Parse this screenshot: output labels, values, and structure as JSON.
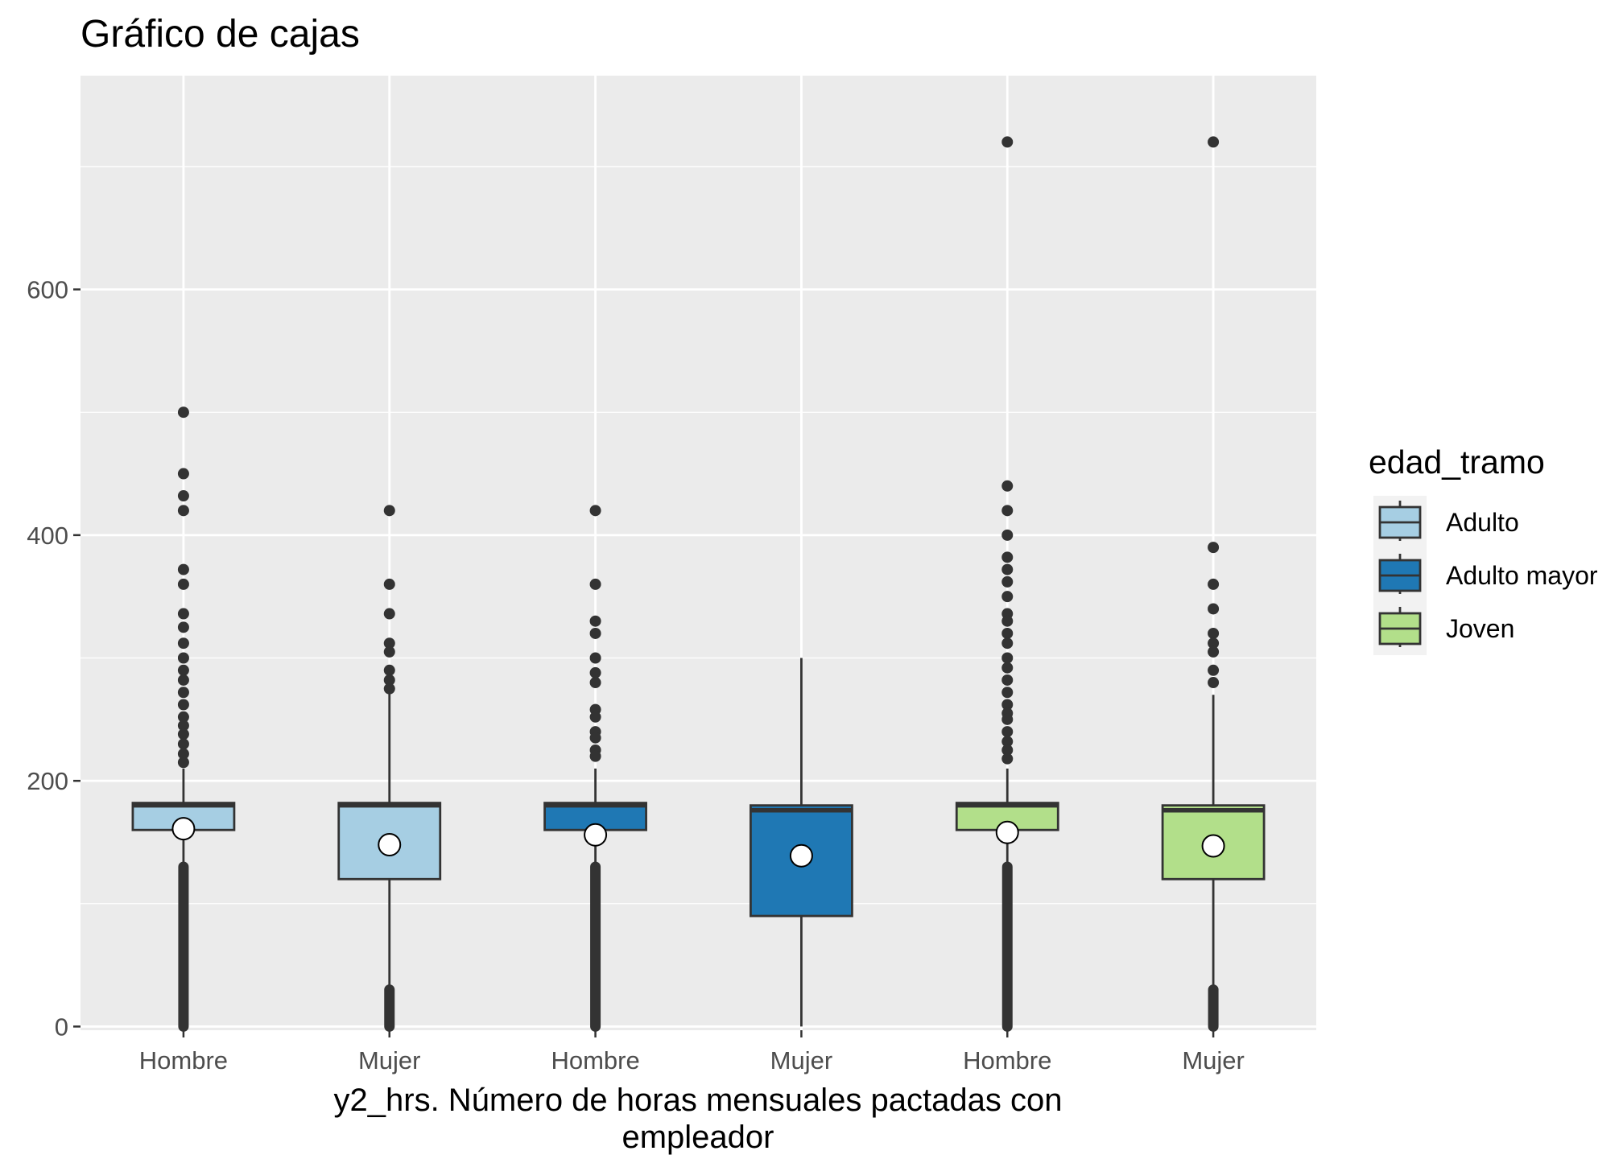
{
  "chart_data": {
    "type": "box",
    "title": "Gráfico de cajas",
    "xlabel_lines": [
      "y2_hrs. Número de horas mensuales pactadas con",
      "empleador"
    ],
    "ylabel": "",
    "ylim": [
      -3,
      774
    ],
    "yticks": [
      0,
      200,
      400,
      600
    ],
    "grid": true,
    "legend": {
      "title": "edad_tramo",
      "position": "right",
      "entries": [
        {
          "label": "Adulto",
          "color": "#a6cee3"
        },
        {
          "label": "Adulto mayor",
          "color": "#1f78b4"
        },
        {
          "label": "Joven",
          "color": "#b2df8a"
        }
      ]
    },
    "categories": [
      "Hombre",
      "Mujer",
      "Hombre",
      "Mujer",
      "Hombre",
      "Mujer"
    ],
    "boxes": [
      {
        "category": "Hombre",
        "group": "Adulto",
        "color": "#a6cee3",
        "whisker_low": 130,
        "q1": 160,
        "median": 180,
        "q3": 182,
        "whisker_high": 210,
        "mean": 161,
        "outliers_low_range": [
          0,
          130
        ],
        "outliers": [
          500,
          450,
          432,
          420,
          372,
          360,
          336,
          325,
          312,
          300,
          290,
          282,
          272,
          262,
          252,
          245,
          238,
          230,
          222,
          215
        ]
      },
      {
        "category": "Mujer",
        "group": "Adulto",
        "color": "#a6cee3",
        "whisker_low": 30,
        "q1": 120,
        "median": 180,
        "q3": 182,
        "whisker_high": 272,
        "mean": 148,
        "outliers_low_range": [
          0,
          30
        ],
        "outliers": [
          420,
          360,
          336,
          312,
          305,
          290,
          282,
          275
        ]
      },
      {
        "category": "Hombre",
        "group": "Adulto mayor",
        "color": "#1f78b4",
        "whisker_low": 130,
        "q1": 160,
        "median": 180,
        "q3": 182,
        "whisker_high": 210,
        "mean": 156,
        "outliers_low_range": [
          0,
          130
        ],
        "outliers": [
          420,
          360,
          330,
          320,
          300,
          288,
          280,
          258,
          252,
          240,
          235,
          225,
          220
        ]
      },
      {
        "category": "Mujer",
        "group": "Adulto mayor",
        "color": "#1f78b4",
        "whisker_low": 0,
        "q1": 90,
        "median": 176,
        "q3": 180,
        "whisker_high": 300,
        "mean": 139,
        "outliers": []
      },
      {
        "category": "Hombre",
        "group": "Joven",
        "color": "#b2df8a",
        "whisker_low": 130,
        "q1": 160,
        "median": 180,
        "q3": 182,
        "whisker_high": 210,
        "mean": 158,
        "outliers_low_range": [
          0,
          130
        ],
        "outliers": [
          720,
          440,
          420,
          400,
          382,
          372,
          362,
          350,
          336,
          330,
          320,
          312,
          300,
          292,
          282,
          272,
          262,
          255,
          250,
          240,
          232,
          225,
          218
        ]
      },
      {
        "category": "Mujer",
        "group": "Joven",
        "color": "#b2df8a",
        "whisker_low": 30,
        "q1": 120,
        "median": 176,
        "q3": 180,
        "whisker_high": 270,
        "mean": 147,
        "outliers_low_range": [
          0,
          30
        ],
        "outliers": [
          720,
          390,
          360,
          340,
          320,
          312,
          305,
          290,
          280
        ]
      }
    ]
  }
}
